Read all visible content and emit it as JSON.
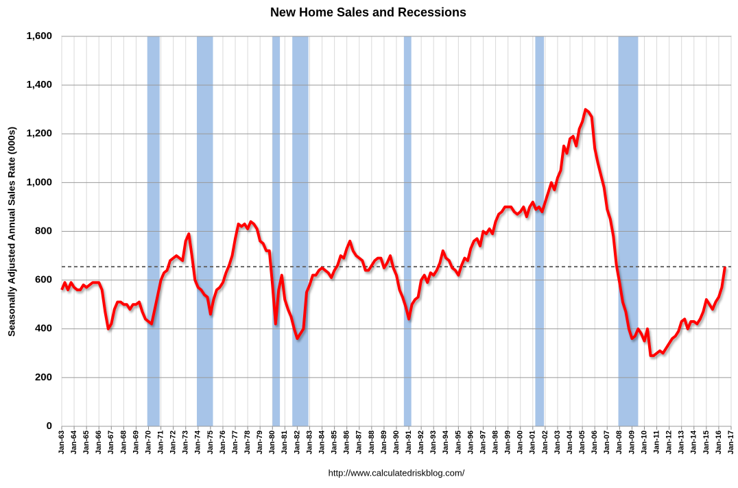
{
  "chart_data": {
    "type": "line",
    "title": "New Home Sales and Recessions",
    "y_label": "Seasonally Adjusted Annual Sales Rate (000s)",
    "source": "http://www.calculatedriskblog.com/",
    "color": "#ff0000",
    "band_color": "#a7c4e8",
    "grid": true,
    "reference_line": 655,
    "xlim": [
      1963,
      2017
    ],
    "ylim": [
      0,
      1600
    ],
    "yticks": [
      0,
      200,
      400,
      600,
      800,
      {
        "value": 1000,
        "label": "1,000"
      },
      {
        "value": 1200,
        "label": "1,200"
      },
      {
        "value": 1400,
        "label": "1,400"
      },
      {
        "value": 1600,
        "label": "1,600"
      }
    ],
    "xticks": [
      {
        "value": 1963,
        "label": "Jan-63"
      },
      {
        "value": 1964,
        "label": "Jan-64"
      },
      {
        "value": 1965,
        "label": "Jan-65"
      },
      {
        "value": 1966,
        "label": "Jan-66"
      },
      {
        "value": 1967,
        "label": "Jan-67"
      },
      {
        "value": 1968,
        "label": "Jan-68"
      },
      {
        "value": 1969,
        "label": "Jan-69"
      },
      {
        "value": 1970,
        "label": "Jan-70"
      },
      {
        "value": 1971,
        "label": "Jan-71"
      },
      {
        "value": 1972,
        "label": "Jan-72"
      },
      {
        "value": 1973,
        "label": "Jan-73"
      },
      {
        "value": 1974,
        "label": "Jan-74"
      },
      {
        "value": 1975,
        "label": "Jan-75"
      },
      {
        "value": 1976,
        "label": "Jan-76"
      },
      {
        "value": 1977,
        "label": "Jan-77"
      },
      {
        "value": 1978,
        "label": "Jan-78"
      },
      {
        "value": 1979,
        "label": "Jan-79"
      },
      {
        "value": 1980,
        "label": "Jan-80"
      },
      {
        "value": 1981,
        "label": "Jan-81"
      },
      {
        "value": 1982,
        "label": "Jan-82"
      },
      {
        "value": 1983,
        "label": "Jan-83"
      },
      {
        "value": 1984,
        "label": "Jan-84"
      },
      {
        "value": 1985,
        "label": "Jan-85"
      },
      {
        "value": 1986,
        "label": "Jan-86"
      },
      {
        "value": 1987,
        "label": "Jan-87"
      },
      {
        "value": 1988,
        "label": "Jan-88"
      },
      {
        "value": 1989,
        "label": "Jan-89"
      },
      {
        "value": 1990,
        "label": "Jan-90"
      },
      {
        "value": 1991,
        "label": "Jan-91"
      },
      {
        "value": 1992,
        "label": "Jan-92"
      },
      {
        "value": 1993,
        "label": "Jan-93"
      },
      {
        "value": 1994,
        "label": "Jan-94"
      },
      {
        "value": 1995,
        "label": "Jan-95"
      },
      {
        "value": 1996,
        "label": "Jan-96"
      },
      {
        "value": 1997,
        "label": "Jan-97"
      },
      {
        "value": 1998,
        "label": "Jan-98"
      },
      {
        "value": 1999,
        "label": "Jan-99"
      },
      {
        "value": 2000,
        "label": "Jan-00"
      },
      {
        "value": 2001,
        "label": "Jan-01"
      },
      {
        "value": 2002,
        "label": "Jan-02"
      },
      {
        "value": 2003,
        "label": "Jan-03"
      },
      {
        "value": 2004,
        "label": "Jan-04"
      },
      {
        "value": 2005,
        "label": "Jan-05"
      },
      {
        "value": 2006,
        "label": "Jan-06"
      },
      {
        "value": 2007,
        "label": "Jan-07"
      },
      {
        "value": 2008,
        "label": "Jan-08"
      },
      {
        "value": 2009,
        "label": "Jan-09"
      },
      {
        "value": 2010,
        "label": "Jan-10"
      },
      {
        "value": 2011,
        "label": "Jan-11"
      },
      {
        "value": 2012,
        "label": "Jan-12"
      },
      {
        "value": 2013,
        "label": "Jan-13"
      },
      {
        "value": 2014,
        "label": "Jan-14"
      },
      {
        "value": 2015,
        "label": "Jan-15"
      },
      {
        "value": 2016,
        "label": "Jan-16"
      },
      {
        "value": 2017,
        "label": "Jan-17"
      }
    ],
    "recessions": [
      {
        "start": 1969.9,
        "end": 1970.9
      },
      {
        "start": 1973.9,
        "end": 1975.2
      },
      {
        "start": 1980.0,
        "end": 1980.6
      },
      {
        "start": 1981.6,
        "end": 1982.9
      },
      {
        "start": 1990.6,
        "end": 1991.2
      },
      {
        "start": 2001.2,
        "end": 2001.9
      },
      {
        "start": 2007.9,
        "end": 2009.5
      }
    ],
    "x": [
      1963,
      1963.25,
      1963.5,
      1963.75,
      1964,
      1964.25,
      1964.5,
      1964.75,
      1965,
      1965.25,
      1965.5,
      1965.75,
      1966,
      1966.25,
      1966.5,
      1966.75,
      1967,
      1967.25,
      1967.5,
      1967.75,
      1968,
      1968.25,
      1968.5,
      1968.75,
      1969,
      1969.25,
      1969.5,
      1969.75,
      1970,
      1970.25,
      1970.5,
      1970.75,
      1971,
      1971.25,
      1971.5,
      1971.75,
      1972,
      1972.25,
      1972.5,
      1972.75,
      1973,
      1973.25,
      1973.5,
      1973.75,
      1974,
      1974.25,
      1974.5,
      1974.75,
      1975,
      1975.25,
      1975.5,
      1975.75,
      1976,
      1976.25,
      1976.5,
      1976.75,
      1977,
      1977.25,
      1977.5,
      1977.75,
      1978,
      1978.25,
      1978.5,
      1978.75,
      1979,
      1979.25,
      1979.5,
      1979.75,
      1980,
      1980.25,
      1980.5,
      1980.75,
      1981,
      1981.25,
      1981.5,
      1981.75,
      1982,
      1982.25,
      1982.5,
      1982.75,
      1983,
      1983.25,
      1983.5,
      1983.75,
      1984,
      1984.25,
      1984.5,
      1984.75,
      1985,
      1985.25,
      1985.5,
      1985.75,
      1986,
      1986.25,
      1986.5,
      1986.75,
      1987,
      1987.25,
      1987.5,
      1987.75,
      1988,
      1988.25,
      1988.5,
      1988.75,
      1989,
      1989.25,
      1989.5,
      1989.75,
      1990,
      1990.25,
      1990.5,
      1990.75,
      1991,
      1991.25,
      1991.5,
      1991.75,
      1992,
      1992.25,
      1992.5,
      1992.75,
      1993,
      1993.25,
      1993.5,
      1993.75,
      1994,
      1994.25,
      1994.5,
      1994.75,
      1995,
      1995.25,
      1995.5,
      1995.75,
      1996,
      1996.25,
      1996.5,
      1996.75,
      1997,
      1997.25,
      1997.5,
      1997.75,
      1998,
      1998.25,
      1998.5,
      1998.75,
      1999,
      1999.25,
      1999.5,
      1999.75,
      2000,
      2000.25,
      2000.5,
      2000.75,
      2001,
      2001.25,
      2001.5,
      2001.75,
      2002,
      2002.25,
      2002.5,
      2002.75,
      2003,
      2003.25,
      2003.5,
      2003.75,
      2004,
      2004.25,
      2004.5,
      2004.75,
      2005,
      2005.25,
      2005.5,
      2005.75,
      2006,
      2006.25,
      2006.5,
      2006.75,
      2007,
      2007.25,
      2007.5,
      2007.75,
      2008,
      2008.25,
      2008.5,
      2008.75,
      2009,
      2009.25,
      2009.5,
      2009.75,
      2010,
      2010.25,
      2010.5,
      2010.75,
      2011,
      2011.25,
      2011.5,
      2011.75,
      2012,
      2012.25,
      2012.5,
      2012.75,
      2013,
      2013.25,
      2013.5,
      2013.75,
      2014,
      2014.25,
      2014.5,
      2014.75,
      2015,
      2015.25,
      2015.5,
      2015.75,
      2016,
      2016.25,
      2016.5
    ],
    "values": [
      560,
      590,
      560,
      590,
      570,
      560,
      560,
      580,
      570,
      580,
      590,
      590,
      590,
      560,
      470,
      400,
      420,
      480,
      510,
      510,
      500,
      500,
      480,
      500,
      500,
      510,
      470,
      440,
      430,
      420,
      480,
      540,
      600,
      630,
      640,
      680,
      690,
      700,
      690,
      680,
      760,
      790,
      700,
      600,
      570,
      560,
      540,
      530,
      460,
      520,
      560,
      570,
      590,
      630,
      660,
      700,
      770,
      830,
      820,
      830,
      810,
      840,
      830,
      810,
      760,
      750,
      720,
      720,
      580,
      420,
      560,
      620,
      520,
      480,
      450,
      400,
      360,
      380,
      400,
      550,
      580,
      620,
      620,
      640,
      650,
      640,
      630,
      610,
      640,
      660,
      700,
      690,
      730,
      760,
      720,
      700,
      690,
      680,
      640,
      640,
      660,
      680,
      690,
      690,
      650,
      670,
      700,
      650,
      620,
      560,
      530,
      490,
      440,
      500,
      520,
      530,
      600,
      620,
      590,
      630,
      620,
      640,
      670,
      720,
      690,
      680,
      650,
      640,
      620,
      660,
      690,
      680,
      730,
      760,
      770,
      740,
      800,
      790,
      810,
      790,
      840,
      870,
      880,
      900,
      900,
      900,
      880,
      870,
      880,
      900,
      860,
      900,
      920,
      890,
      900,
      880,
      920,
      960,
      1000,
      970,
      1020,
      1050,
      1150,
      1120,
      1180,
      1190,
      1150,
      1220,
      1250,
      1300,
      1290,
      1270,
      1140,
      1080,
      1030,
      980,
      890,
      850,
      780,
      660,
      590,
      510,
      470,
      400,
      360,
      370,
      400,
      380,
      350,
      400,
      290,
      290,
      300,
      310,
      300,
      320,
      340,
      360,
      370,
      390,
      430,
      440,
      400,
      430,
      430,
      420,
      440,
      470,
      520,
      500,
      480,
      510,
      530,
      570,
      655
    ]
  }
}
